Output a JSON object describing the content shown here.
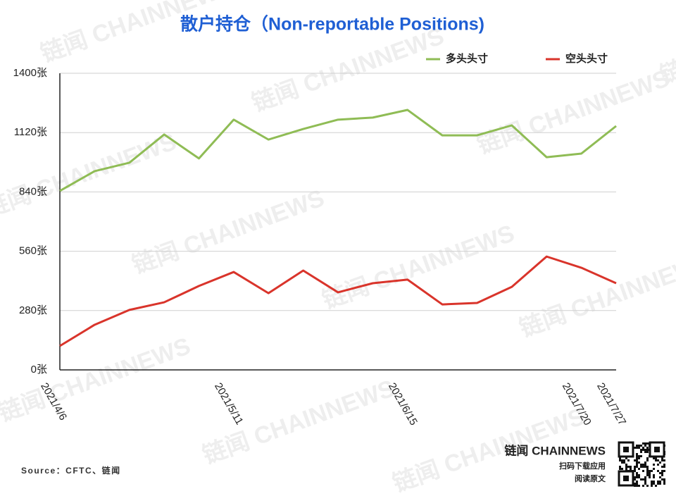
{
  "chart_data": {
    "type": "line",
    "title": "散户持仓（Non-reportable Positions)",
    "categories": [
      "2021/4/6",
      null,
      null,
      null,
      null,
      "2021/5/11",
      null,
      null,
      null,
      null,
      "2021/6/15",
      null,
      null,
      null,
      null,
      "2021/7/20",
      "2021/7/27"
    ],
    "series": [
      {
        "name": "多头头寸",
        "color": "#8fbc55",
        "values": [
          845,
          938,
          978,
          1111,
          998,
          1181,
          1087,
          1137,
          1181,
          1191,
          1227,
          1107,
          1107,
          1154,
          1004,
          1021,
          1151
        ]
      },
      {
        "name": "空头头寸",
        "color": "#d9342b",
        "values": [
          113,
          213,
          283,
          319,
          396,
          462,
          362,
          469,
          366,
          409,
          426,
          309,
          316,
          392,
          535,
          482,
          409
        ]
      }
    ],
    "ylim": [
      0,
      1400
    ],
    "yticks": [
      {
        "value": 0,
        "label": "0张"
      },
      {
        "value": 280,
        "label": "280张"
      },
      {
        "value": 560,
        "label": "560张"
      },
      {
        "value": 840,
        "label": "840张"
      },
      {
        "value": 1120,
        "label": "1120张"
      },
      {
        "value": 1400,
        "label": "1400张"
      }
    ],
    "grid": true,
    "legend": "top-right",
    "source": "Source：CFTC、链闻",
    "watermark": "链闻 CHAINNEWS",
    "brand": "链闻 CHAINNEWS",
    "app_text": "扫码下载应用",
    "read_text": "阅读原文"
  }
}
